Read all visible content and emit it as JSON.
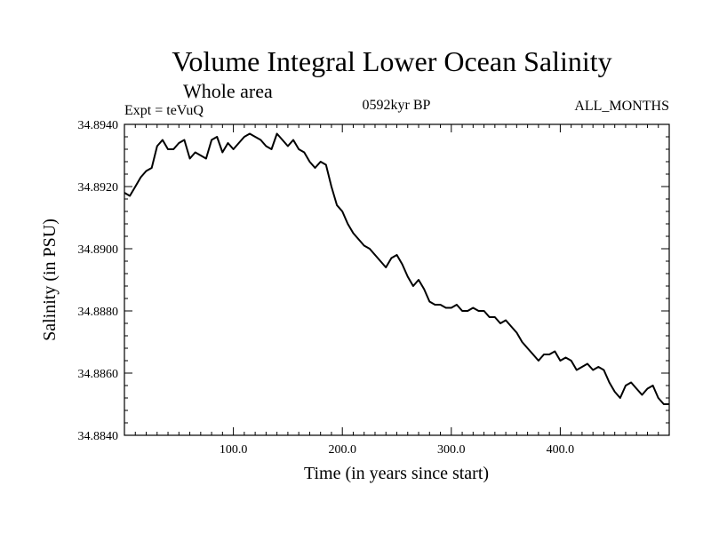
{
  "header": {
    "title": "Volume Integral Lower Ocean Salinity",
    "subtitle": "Whole area",
    "expt": "Expt = teVuQ",
    "period": "0592kyr BP",
    "months": "ALL_MONTHS"
  },
  "chart_data": {
    "type": "line",
    "title": "Volume Integral Lower Ocean Salinity",
    "xlabel": "Time (in years since start)",
    "ylabel": "Salinity (in PSU)",
    "xlim": [
      0,
      500
    ],
    "ylim": [
      34.884,
      34.894
    ],
    "x_ticks": [
      100,
      200,
      300,
      400
    ],
    "x_tick_labels": [
      "100.0",
      "200.0",
      "300.0",
      "400.0"
    ],
    "y_ticks": [
      34.884,
      34.886,
      34.888,
      34.89,
      34.892,
      34.894
    ],
    "y_tick_labels": [
      "34.8840",
      "34.8860",
      "34.8880",
      "34.8900",
      "34.8920",
      "34.8940"
    ],
    "grid": false,
    "series": [
      {
        "color": "#000000",
        "x": [
          0,
          5,
          10,
          15,
          20,
          25,
          30,
          35,
          40,
          45,
          50,
          55,
          60,
          65,
          70,
          75,
          80,
          85,
          90,
          95,
          100,
          105,
          110,
          115,
          120,
          125,
          130,
          135,
          140,
          145,
          150,
          155,
          160,
          165,
          170,
          175,
          180,
          185,
          190,
          195,
          200,
          205,
          210,
          215,
          220,
          225,
          230,
          235,
          240,
          245,
          250,
          255,
          260,
          265,
          270,
          275,
          280,
          285,
          290,
          295,
          300,
          305,
          310,
          315,
          320,
          325,
          330,
          335,
          340,
          345,
          350,
          355,
          360,
          365,
          370,
          375,
          380,
          385,
          390,
          395,
          400,
          405,
          410,
          415,
          420,
          425,
          430,
          435,
          440,
          445,
          450,
          455,
          460,
          465,
          470,
          475,
          480,
          485,
          490,
          495,
          500
        ],
        "y": [
          34.8918,
          34.8917,
          34.892,
          34.8923,
          34.8925,
          34.8926,
          34.8933,
          34.8935,
          34.8932,
          34.8932,
          34.8934,
          34.8935,
          34.8929,
          34.8931,
          34.893,
          34.8929,
          34.8935,
          34.8936,
          34.8931,
          34.8934,
          34.8932,
          34.8934,
          34.8936,
          34.8937,
          34.8936,
          34.8935,
          34.8933,
          34.8932,
          34.8937,
          34.8935,
          34.8933,
          34.8935,
          34.8932,
          34.8931,
          34.8928,
          34.8926,
          34.8928,
          34.8927,
          34.892,
          34.8914,
          34.8912,
          34.8908,
          34.8905,
          34.8903,
          34.8901,
          34.89,
          34.8898,
          34.8896,
          34.8894,
          34.8897,
          34.8898,
          34.8895,
          34.8891,
          34.8888,
          34.889,
          34.8887,
          34.8883,
          34.8882,
          34.8882,
          34.8881,
          34.8881,
          34.8882,
          34.888,
          34.888,
          34.8881,
          34.888,
          34.888,
          34.8878,
          34.8878,
          34.8876,
          34.8877,
          34.8875,
          34.8873,
          34.887,
          34.8868,
          34.8866,
          34.8864,
          34.8866,
          34.8866,
          34.8867,
          34.8864,
          34.8865,
          34.8864,
          34.8861,
          34.8862,
          34.8863,
          34.8861,
          34.8862,
          34.8861,
          34.8857,
          34.8854,
          34.8852,
          34.8856,
          34.8857,
          34.8855,
          34.8853,
          34.8855,
          34.8856,
          34.8852,
          34.885,
          34.885
        ]
      }
    ]
  }
}
